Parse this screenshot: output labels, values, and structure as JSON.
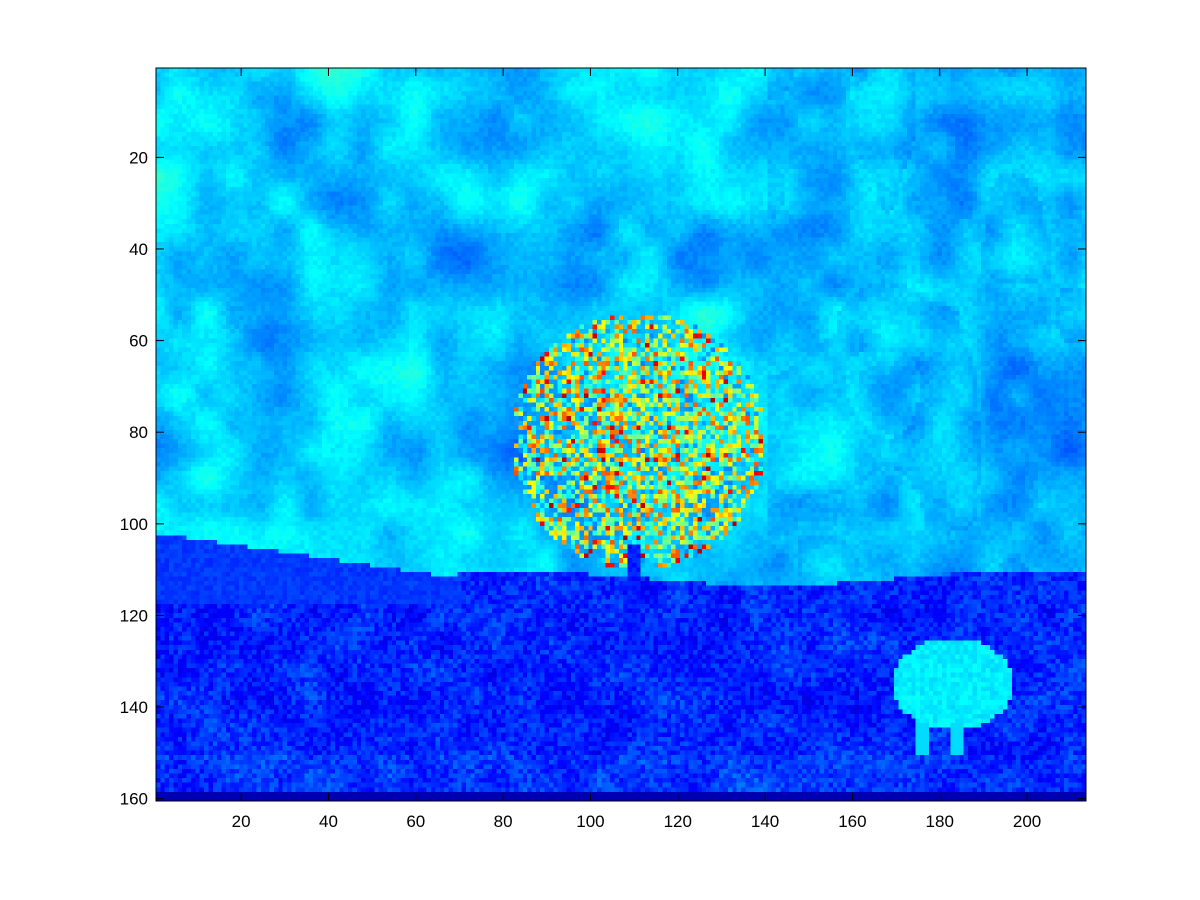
{
  "chart_data": {
    "type": "heatmap",
    "title": "",
    "xlabel": "",
    "ylabel": "",
    "xlim": [
      0.5,
      213.5
    ],
    "ylim": [
      0.5,
      160.5
    ],
    "y_axis_direction": "reverse",
    "colormap": "jet",
    "colormap_stops": [
      "#00008f",
      "#0000ff",
      "#00ffff",
      "#ffff00",
      "#ff0000",
      "#800000"
    ],
    "x_ticks": [
      20,
      40,
      60,
      80,
      100,
      120,
      140,
      160,
      180,
      200
    ],
    "x_tick_labels": [
      "20",
      "40",
      "60",
      "80",
      "100",
      "120",
      "140",
      "160",
      "180",
      "200"
    ],
    "y_ticks": [
      20,
      40,
      60,
      80,
      100,
      120,
      140,
      160
    ],
    "y_tick_labels": [
      "20",
      "40",
      "60",
      "80",
      "100",
      "120",
      "140",
      "160"
    ],
    "image_columns": 213,
    "image_rows": 160,
    "scene_regions": [
      {
        "name": "sky",
        "row_range": [
          1,
          103
        ],
        "col_range": [
          1,
          213
        ],
        "level": 0.32
      },
      {
        "name": "distant-hill",
        "row_range": [
          103,
          118
        ],
        "col_range": [
          1,
          70
        ],
        "level": 0.18
      },
      {
        "name": "field",
        "row_range": [
          112,
          160
        ],
        "col_range": [
          1,
          213
        ],
        "level": 0.16
      },
      {
        "name": "tree-canopy",
        "center_col": 111,
        "center_row": 82,
        "radius_cols": 29,
        "radius_rows": 28,
        "level": 0.58
      },
      {
        "name": "tree-trunk",
        "center_col": 110,
        "row_range": [
          105,
          128
        ],
        "level": 0.15
      },
      {
        "name": "sheep",
        "center_col": 183,
        "center_row": 135,
        "radius_cols": 14,
        "radius_rows": 10,
        "level": 0.36
      }
    ]
  }
}
